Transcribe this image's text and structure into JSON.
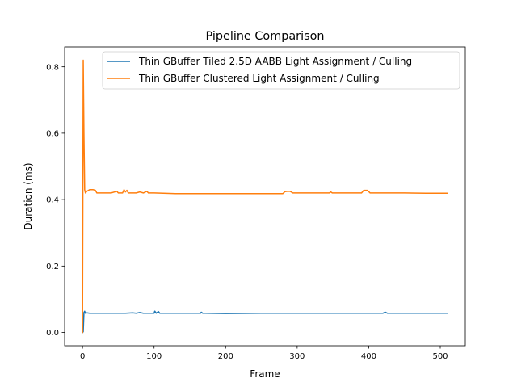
{
  "chart_data": {
    "type": "line",
    "title": "Pipeline Comparison",
    "xlabel": "Frame",
    "ylabel": "Duration (ms)",
    "xlim": [
      -25,
      535
    ],
    "ylim": [
      -0.04,
      0.86
    ],
    "x_ticks": [
      0,
      100,
      200,
      300,
      400,
      500
    ],
    "y_ticks": [
      0.0,
      0.2,
      0.4,
      0.6,
      0.8
    ],
    "grid": false,
    "legend_position": "top-right",
    "series": [
      {
        "name": "Thin GBuffer Tiled 2.5D AABB Light Assignment / Culling",
        "color": "#1f77b4",
        "points": [
          [
            0,
            0.0
          ],
          [
            1,
            0.002
          ],
          [
            2,
            0.06
          ],
          [
            3,
            0.064
          ],
          [
            4,
            0.058
          ],
          [
            6,
            0.059
          ],
          [
            10,
            0.058
          ],
          [
            20,
            0.058
          ],
          [
            40,
            0.058
          ],
          [
            60,
            0.058
          ],
          [
            70,
            0.059
          ],
          [
            75,
            0.058
          ],
          [
            80,
            0.06
          ],
          [
            85,
            0.058
          ],
          [
            100,
            0.058
          ],
          [
            101,
            0.064
          ],
          [
            103,
            0.058
          ],
          [
            106,
            0.063
          ],
          [
            108,
            0.058
          ],
          [
            130,
            0.058
          ],
          [
            165,
            0.058
          ],
          [
            166,
            0.061
          ],
          [
            168,
            0.058
          ],
          [
            200,
            0.057
          ],
          [
            250,
            0.058
          ],
          [
            280,
            0.058
          ],
          [
            300,
            0.058
          ],
          [
            350,
            0.058
          ],
          [
            380,
            0.058
          ],
          [
            400,
            0.058
          ],
          [
            420,
            0.058
          ],
          [
            423,
            0.061
          ],
          [
            426,
            0.058
          ],
          [
            450,
            0.058
          ],
          [
            480,
            0.058
          ],
          [
            510,
            0.058
          ]
        ]
      },
      {
        "name": "Thin GBuffer Clustered Light Assignment / Culling",
        "color": "#ff7f0e",
        "points": [
          [
            0,
            0.0
          ],
          [
            1,
            0.82
          ],
          [
            2,
            0.6
          ],
          [
            3,
            0.43
          ],
          [
            4,
            0.42
          ],
          [
            6,
            0.425
          ],
          [
            10,
            0.43
          ],
          [
            15,
            0.43
          ],
          [
            18,
            0.428
          ],
          [
            20,
            0.42
          ],
          [
            30,
            0.42
          ],
          [
            40,
            0.42
          ],
          [
            48,
            0.425
          ],
          [
            50,
            0.42
          ],
          [
            56,
            0.42
          ],
          [
            58,
            0.43
          ],
          [
            60,
            0.423
          ],
          [
            62,
            0.428
          ],
          [
            64,
            0.42
          ],
          [
            75,
            0.42
          ],
          [
            80,
            0.423
          ],
          [
            85,
            0.42
          ],
          [
            90,
            0.425
          ],
          [
            92,
            0.42
          ],
          [
            100,
            0.42
          ],
          [
            130,
            0.418
          ],
          [
            180,
            0.418
          ],
          [
            200,
            0.418
          ],
          [
            250,
            0.418
          ],
          [
            280,
            0.418
          ],
          [
            283,
            0.424
          ],
          [
            286,
            0.425
          ],
          [
            290,
            0.425
          ],
          [
            294,
            0.42
          ],
          [
            300,
            0.42
          ],
          [
            330,
            0.42
          ],
          [
            345,
            0.42
          ],
          [
            347,
            0.423
          ],
          [
            349,
            0.42
          ],
          [
            380,
            0.42
          ],
          [
            390,
            0.42
          ],
          [
            393,
            0.428
          ],
          [
            398,
            0.428
          ],
          [
            402,
            0.42
          ],
          [
            420,
            0.42
          ],
          [
            450,
            0.42
          ],
          [
            480,
            0.419
          ],
          [
            510,
            0.419
          ]
        ]
      }
    ]
  }
}
